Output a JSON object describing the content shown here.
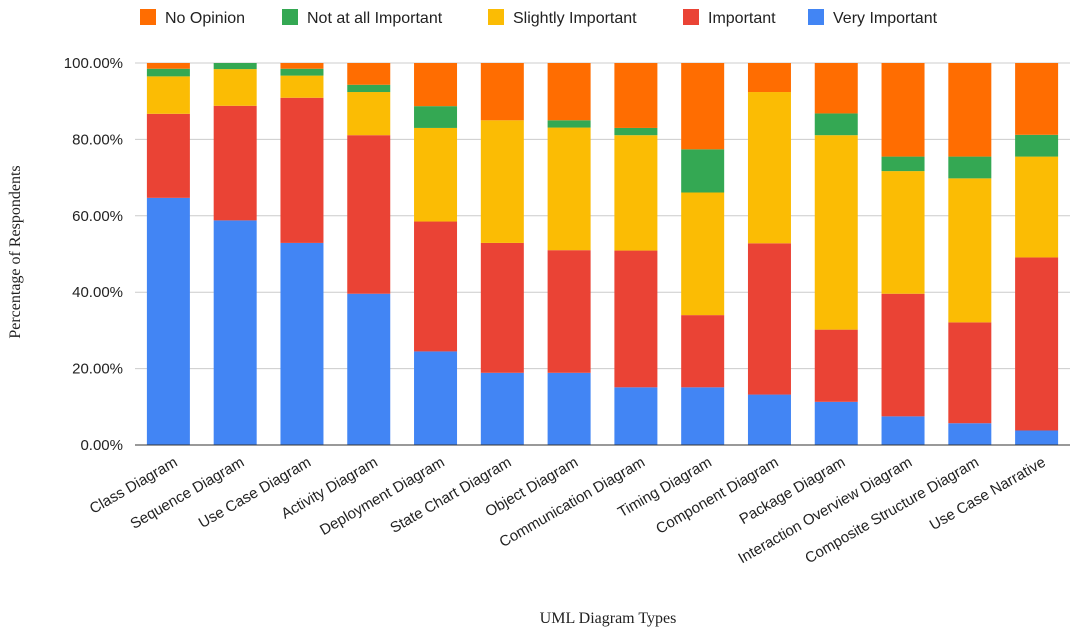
{
  "chart_data": {
    "type": "bar",
    "stacked": true,
    "title": "",
    "xlabel": "UML Diagram Types",
    "ylabel": "Percentage of Respondents",
    "ylim": [
      0,
      100
    ],
    "yticks": [
      "0.00%",
      "20.00%",
      "40.00%",
      "60.00%",
      "80.00%",
      "100.00%"
    ],
    "grid": true,
    "legend_position": "top",
    "legend_order": [
      "No Opinion",
      "Not at all Important",
      "Slightly Important",
      "Important",
      "Very Important"
    ],
    "categories": [
      "Class Diagram",
      "Sequence Diagram",
      "Use Case Diagram",
      "Activity Diagram",
      "Deployment Diagram",
      "State Chart Diagram",
      "Object Diagram",
      "Communication Diagram",
      "Timing Diagram",
      "Component Diagram",
      "Package Diagram",
      "Interaction Overview Diagram",
      "Composite Structure Diagram",
      "Use Case Narrative"
    ],
    "series": [
      {
        "name": "Very Important",
        "color": "#4285f4",
        "values": [
          64.7,
          58.8,
          52.9,
          39.6,
          24.5,
          18.9,
          18.9,
          15.1,
          15.1,
          13.2,
          11.3,
          7.5,
          5.7,
          3.8
        ]
      },
      {
        "name": "Important",
        "color": "#ea4335",
        "values": [
          22.0,
          30.0,
          38.0,
          41.5,
          34.0,
          34.0,
          32.1,
          35.8,
          18.9,
          39.6,
          18.9,
          32.1,
          26.4,
          45.3
        ]
      },
      {
        "name": "Slightly Important",
        "color": "#fbbc04",
        "values": [
          9.8,
          9.6,
          5.8,
          11.3,
          24.5,
          32.1,
          32.1,
          30.2,
          32.1,
          39.6,
          50.9,
          32.1,
          37.7,
          26.4
        ]
      },
      {
        "name": "Not at all Important",
        "color": "#34a853",
        "values": [
          2.0,
          1.6,
          1.8,
          1.9,
          5.7,
          0.0,
          1.9,
          1.9,
          11.3,
          0.0,
          5.7,
          3.8,
          5.7,
          5.7
        ]
      },
      {
        "name": "No Opinion",
        "color": "#ff6d01",
        "values": [
          1.5,
          0.0,
          1.5,
          5.7,
          11.3,
          15.0,
          15.0,
          17.0,
          22.6,
          7.6,
          13.2,
          24.5,
          24.5,
          18.8
        ]
      }
    ]
  }
}
